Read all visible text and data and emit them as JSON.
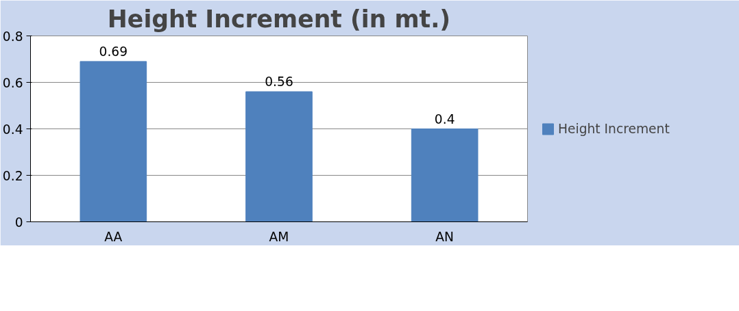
{
  "chart_data": {
    "type": "bar",
    "title": "Height Increment (in mt.)",
    "categories": [
      "AA",
      "AM",
      "AN"
    ],
    "series": [
      {
        "name": "Height Increment",
        "color": "#4f81bd",
        "values": [
          0.69,
          0.56,
          0.4
        ]
      }
    ],
    "ylim": [
      0,
      0.8
    ],
    "yticks": [
      0,
      0.2,
      0.4,
      0.6,
      0.8
    ],
    "grid": "y",
    "legend": "right",
    "data_labels": true
  }
}
